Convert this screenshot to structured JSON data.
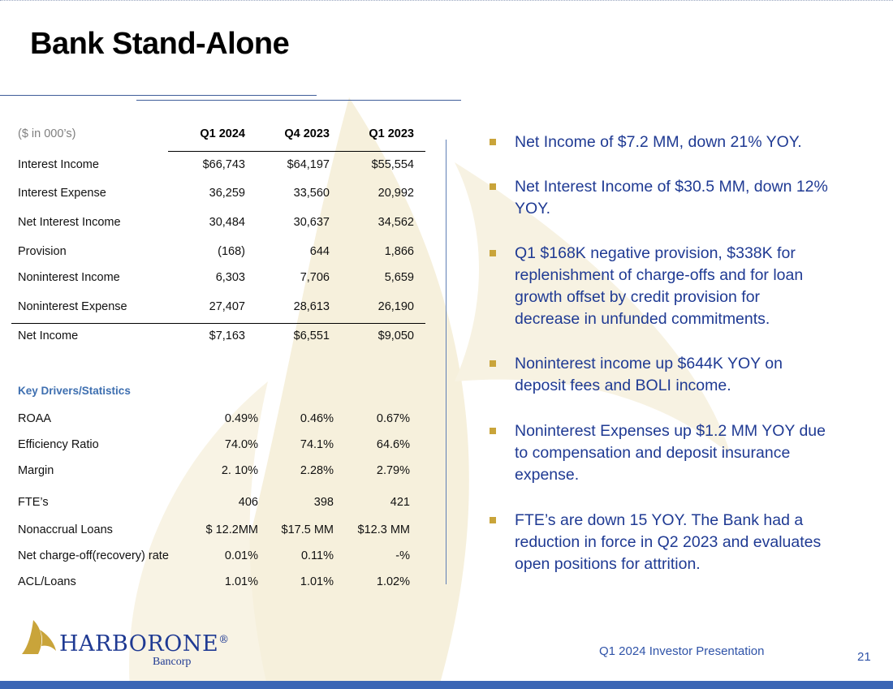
{
  "slide": {
    "title": "Bank Stand-Alone",
    "footer_text": "Q1 2024 Investor Presentation",
    "page_number": "21",
    "colors": {
      "accent_blue": "#1f3a93",
      "bullet_gold": "#c9a43a",
      "bar_blue": "#3b66b5",
      "section_blue": "#3e6fb0"
    }
  },
  "table": {
    "unit_label": "($ in 000’s)",
    "columns": [
      "Q1 2024",
      "Q4 2023",
      "Q1 2023"
    ],
    "rows": [
      {
        "label": "Interest Income",
        "values": [
          "$66,743",
          "$64,197",
          "$55,554"
        ]
      },
      {
        "label": "Interest Expense",
        "values": [
          "36,259",
          "33,560",
          "20,992"
        ]
      },
      {
        "label": "Net Interest Income",
        "values": [
          "30,484",
          "30,637",
          "34,562"
        ]
      },
      {
        "label": "Provision",
        "values": [
          "(168)",
          "644",
          "1,866"
        ]
      },
      {
        "label": "Noninterest Income",
        "values": [
          "6,303",
          "7,706",
          "5,659"
        ]
      },
      {
        "label": "Noninterest Expense",
        "values": [
          "27,407",
          "28,613",
          "26,190"
        ]
      },
      {
        "label": "Net Income",
        "values": [
          "$7,163",
          "$6,551",
          "$9,050"
        ]
      }
    ]
  },
  "key_drivers": {
    "heading": "Key Drivers/Statistics",
    "rows": [
      {
        "label": "ROAA",
        "values": [
          "0.49%",
          "0.46%",
          "0.67%"
        ]
      },
      {
        "label": "Efficiency Ratio",
        "values": [
          "74.0%",
          "74.1%",
          "64.6%"
        ]
      },
      {
        "label": "Margin",
        "values": [
          "2. 10%",
          "2.28%",
          "2.79%"
        ]
      },
      {
        "label": "FTE’s",
        "values": [
          "406",
          "398",
          "421"
        ]
      },
      {
        "label": "Nonaccrual Loans",
        "values": [
          "$ 12.2MM",
          "$17.5 MM",
          "$12.3 MM"
        ]
      },
      {
        "label": "Net charge-off(recovery) rate",
        "values": [
          "0.01%",
          "0.11%",
          "-%"
        ]
      },
      {
        "label": "ACL/Loans",
        "values": [
          "1.01%",
          "1.01%",
          "1.02%"
        ]
      }
    ]
  },
  "bullets": [
    "Net Income of $7.2 MM, down 21% YOY.",
    "Net Interest Income of $30.5 MM, down 12% YOY.",
    "Q1 $168K negative provision, $338K for replenishment of charge-offs and for loan growth offset by credit provision for decrease in unfunded commitments.",
    "Noninterest income up $644K YOY on deposit fees and BOLI income.",
    "Noninterest Expenses up $1.2 MM YOY due to compensation and deposit insurance expense.",
    "FTE’s are down 15 YOY. The Bank had a reduction in force in Q2 2023 and evaluates open positions for attrition."
  ],
  "logo": {
    "name": "HARBORONE",
    "registered_mark": "®",
    "sub": "Bancorp",
    "icon": "sail-logo-icon"
  }
}
